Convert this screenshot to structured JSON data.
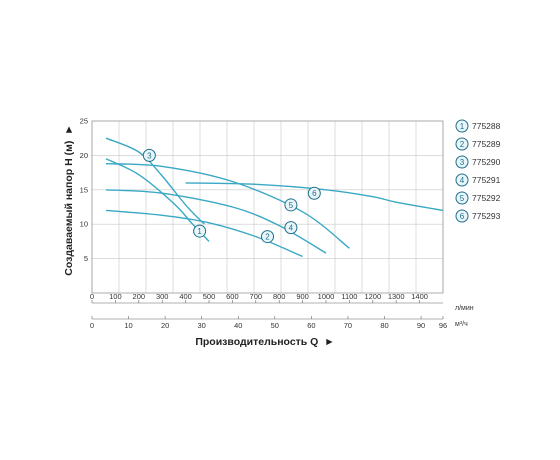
{
  "chart_data": {
    "type": "line",
    "ylabel": "Создаваемый напор H (м)",
    "ylabel_arrow": "►",
    "xlabel": "Производительность Q",
    "xlabel_arrow": "►",
    "ylim": [
      0,
      25
    ],
    "yticks": [
      5,
      10,
      15,
      20,
      25
    ],
    "x_primary": {
      "unit": "л/мин",
      "ticks": [
        "0",
        "100",
        "200",
        "300",
        "400",
        "500",
        "600",
        "700",
        "800",
        "900",
        "1000",
        "1100",
        "1200",
        "1300",
        "1400"
      ],
      "xlim": [
        0,
        1500
      ]
    },
    "x_secondary": {
      "unit": "м³/ч",
      "ticks": [
        "0",
        "10",
        "20",
        "30",
        "40",
        "50",
        "60",
        "70",
        "80",
        "90",
        "96"
      ]
    },
    "grid": true,
    "legend_position": "right",
    "series": [
      {
        "name": "775288",
        "label": "1",
        "x": [
          60,
          200,
          350,
          430,
          500
        ],
        "y": [
          19.5,
          17.2,
          13.0,
          10.0,
          7.5
        ]
      },
      {
        "name": "775289",
        "label": "2",
        "x": [
          60,
          300,
          500,
          700,
          900
        ],
        "y": [
          12.0,
          11.3,
          10.2,
          8.2,
          5.3
        ]
      },
      {
        "name": "775290",
        "label": "3",
        "x": [
          60,
          200,
          300,
          400,
          480
        ],
        "y": [
          22.5,
          20.5,
          17.0,
          12.8,
          10.0
        ]
      },
      {
        "name": "775291",
        "label": "4",
        "x": [
          60,
          300,
          600,
          800,
          1000
        ],
        "y": [
          15.0,
          14.5,
          12.5,
          9.8,
          5.8
        ]
      },
      {
        "name": "775292",
        "label": "5",
        "x": [
          60,
          300,
          600,
          900,
          1100
        ],
        "y": [
          18.8,
          18.4,
          16.2,
          11.8,
          6.5
        ]
      },
      {
        "name": "775293",
        "label": "6",
        "x": [
          400,
          700,
          1000,
          1200,
          1300,
          1500
        ],
        "y": [
          16.0,
          15.8,
          15.0,
          14.0,
          13.2,
          12.0
        ]
      }
    ],
    "curve_label_positions": [
      {
        "label": "1",
        "x": 460,
        "y": 9.0
      },
      {
        "label": "2",
        "x": 750,
        "y": 8.2
      },
      {
        "label": "3",
        "x": 245,
        "y": 20.0
      },
      {
        "label": "4",
        "x": 850,
        "y": 9.5
      },
      {
        "label": "5",
        "x": 850,
        "y": 12.8
      },
      {
        "label": "6",
        "x": 950,
        "y": 14.5
      }
    ],
    "colors": {
      "line": "#3aa8c5",
      "grid": "#c8c8c8",
      "badge_stroke": "#1f6f8b",
      "badge_fill": "#e8f6fa"
    }
  }
}
